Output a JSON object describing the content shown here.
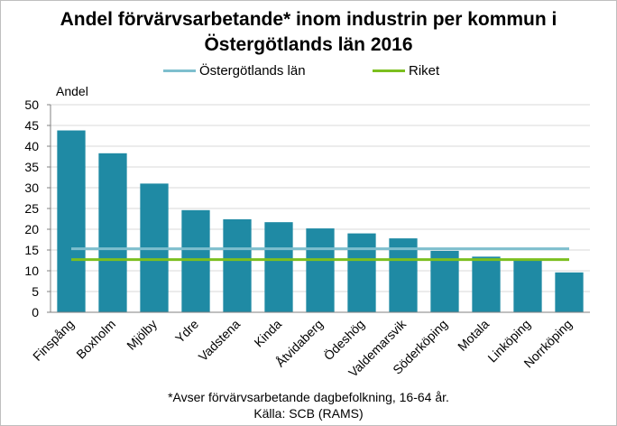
{
  "chart_data": {
    "type": "bar",
    "title_lines": [
      "Andel förvärvsarbetande* inom industrin per kommun i",
      "Östergötlands län 2016"
    ],
    "ylabel": "Andel",
    "xlabel": "",
    "ylim": [
      0,
      50
    ],
    "yticks": [
      0,
      5,
      10,
      15,
      20,
      25,
      30,
      35,
      40,
      45,
      50
    ],
    "grid": true,
    "legend_position": "top",
    "categories": [
      "Finspång",
      "Boxholm",
      "Mjölby",
      "Ydre",
      "Vadstena",
      "Kinda",
      "Åtvidaberg",
      "Ödeshög",
      "Valdemarsvik",
      "Söderköping",
      "Motala",
      "Linköping",
      "Norrköping"
    ],
    "values": [
      43.8,
      38.3,
      31.0,
      24.6,
      22.4,
      21.7,
      20.2,
      19.0,
      17.8,
      14.8,
      13.4,
      12.5,
      9.6
    ],
    "bar_color": "#1f8aa4",
    "reference_lines": [
      {
        "name": "Östergötlands län",
        "value": 15.3,
        "color": "#7ebfce"
      },
      {
        "name": "Riket",
        "value": 12.7,
        "color": "#7cbf1f"
      }
    ],
    "footnotes": [
      "*Avser förvärvsarbetande dagbefolkning, 16-64 år.",
      "Källa: SCB (RAMS)"
    ]
  }
}
